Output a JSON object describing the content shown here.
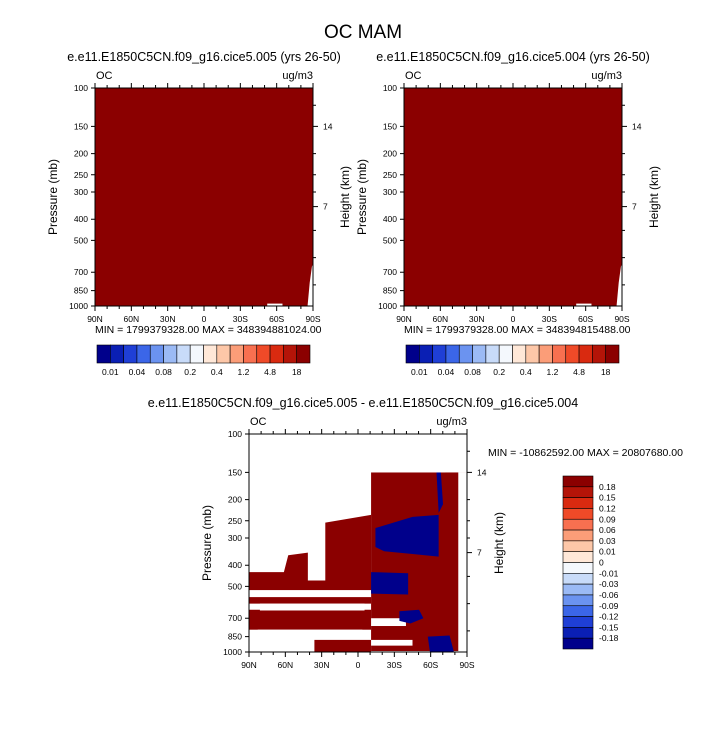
{
  "figure": {
    "title": "OC MAM"
  },
  "chart_data": [
    {
      "type": "heatmap",
      "title": "e.e11.E1850C5CN.f09_g16.cice5.005 (yrs 26-50)",
      "left_label": "OC",
      "units": "ug/m3",
      "xlabel": "",
      "ylabel": "Pressure (mb)",
      "y2label": "Height (km)",
      "x_tick_labels": [
        "90N",
        "60N",
        "30N",
        "0",
        "30S",
        "60S",
        "90S"
      ],
      "y_tick_labels": [
        "100",
        "150",
        "200",
        "250",
        "300",
        "400",
        "500",
        "700",
        "850",
        "1000"
      ],
      "y2_tick_labels": [
        "14",
        "7"
      ],
      "stats": "MIN = 1799379328.00   MAX = 348394881024.00",
      "fill_color": "#8b0000"
    },
    {
      "type": "heatmap",
      "title": "e.e11.E1850C5CN.f09_g16.cice5.004 (yrs 26-50)",
      "left_label": "OC",
      "units": "ug/m3",
      "xlabel": "",
      "ylabel": "Pressure (mb)",
      "y2label": "Height (km)",
      "x_tick_labels": [
        "90N",
        "60N",
        "30N",
        "0",
        "30S",
        "60S",
        "90S"
      ],
      "y_tick_labels": [
        "100",
        "150",
        "200",
        "250",
        "300",
        "400",
        "500",
        "700",
        "850",
        "1000"
      ],
      "y2_tick_labels": [
        "14",
        "7"
      ],
      "stats": "MIN = 1799379328.00   MAX = 348394815488.00",
      "fill_color": "#8b0000"
    },
    {
      "type": "heatmap",
      "title": "e.e11.E1850C5CN.f09_g16.cice5.005 - e.e11.E1850C5CN.f09_g16.cice5.004",
      "left_label": "OC",
      "units": "ug/m3",
      "xlabel": "",
      "ylabel": "Pressure (mb)",
      "y2label": "Height (km)",
      "x_tick_labels": [
        "90N",
        "60N",
        "30N",
        "0",
        "30S",
        "60S",
        "90S"
      ],
      "y_tick_labels": [
        "100",
        "150",
        "200",
        "250",
        "300",
        "400",
        "500",
        "700",
        "850",
        "1000"
      ],
      "y2_tick_labels": [
        "14",
        "7"
      ],
      "stats": "MIN = -10862592.00   MAX = 20807680.00",
      "colors": {
        "positive": "#8b0000",
        "negative": "#00008b"
      }
    }
  ],
  "colorbar_top": {
    "labels": [
      "0.01",
      "0.04",
      "0.08",
      "0.2",
      "0.4",
      "1.2",
      "4.8",
      "18"
    ],
    "colors": [
      "#00008b",
      "#0a1fb4",
      "#1f3fd6",
      "#3b66e8",
      "#6b93f0",
      "#9bbaf5",
      "#c8dbf9",
      "#f4f8fd",
      "#ffe8d8",
      "#fdc7a8",
      "#fb9d78",
      "#f87050",
      "#ef4a28",
      "#d92a10",
      "#b41408",
      "#8b0000"
    ]
  },
  "colorbar_diff": {
    "labels": [
      "0.18",
      "0.15",
      "0.12",
      "0.09",
      "0.06",
      "0.03",
      "0.01",
      "0",
      "-0.01",
      "-0.03",
      "-0.06",
      "-0.09",
      "-0.12",
      "-0.15",
      "-0.18"
    ],
    "colors": [
      "#8b0000",
      "#b41408",
      "#d92a10",
      "#ef4a28",
      "#f87050",
      "#fb9d78",
      "#fdc7a8",
      "#ffe8d8",
      "#f4f8fd",
      "#c8dbf9",
      "#9bbaf5",
      "#6b93f0",
      "#3b66e8",
      "#1f3fd6",
      "#0a1fb4",
      "#00008b"
    ]
  }
}
